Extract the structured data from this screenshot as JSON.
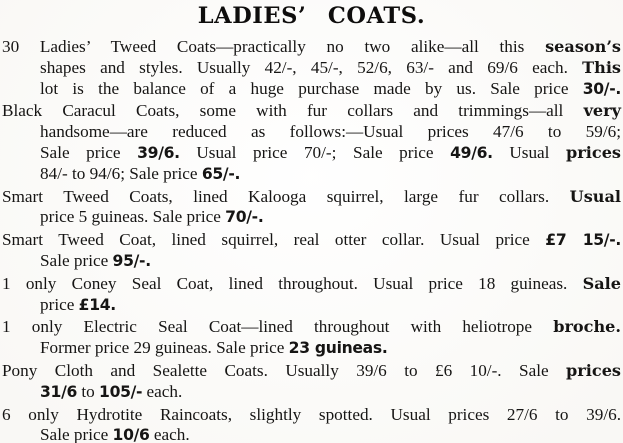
{
  "ad": {
    "title": "LADIES’ COATS.",
    "text_color": "#141312",
    "paper_color": "#fdfcf9",
    "items": [
      {
        "lines": [
          {
            "indent": false,
            "justify": true,
            "segments": [
              {
                "t": "30 Ladies’ Tweed Coats—practically no two alike—all this "
              },
              {
                "t": "season’s",
                "b": true
              }
            ]
          },
          {
            "indent": true,
            "justify": true,
            "segments": [
              {
                "t": "shapes and styles.  Usually 42/-, 45/-, 52/6, 63/- and 69/6 each.  "
              },
              {
                "t": "This",
                "b": true
              }
            ]
          },
          {
            "indent": true,
            "justify": true,
            "segments": [
              {
                "t": "lot is the balance of a huge purchase made by us.  Sale price "
              },
              {
                "t": "30/-.",
                "b": true
              }
            ]
          }
        ]
      },
      {
        "lines": [
          {
            "indent": false,
            "justify": true,
            "segments": [
              {
                "t": "Black Caracul Coats, some with fur collars and trimmings—all "
              },
              {
                "t": "very",
                "b": true
              }
            ]
          },
          {
            "indent": true,
            "justify": true,
            "segments": [
              {
                "t": "handsome—are reduced as follows:—Usual prices 47/6 to 59/6;"
              }
            ]
          },
          {
            "indent": true,
            "justify": true,
            "segments": [
              {
                "t": "Sale price "
              },
              {
                "t": "39/6.",
                "b": true
              },
              {
                "t": "  Usual price 70/-; Sale price "
              },
              {
                "t": "49/6.",
                "b": true
              },
              {
                "t": "  Usual "
              },
              {
                "t": "prices",
                "b": true
              }
            ]
          },
          {
            "indent": true,
            "justify": false,
            "segments": [
              {
                "t": "84/- to 94/6; Sale price "
              },
              {
                "t": "65/-.",
                "b": true
              }
            ]
          }
        ]
      },
      {
        "lines": [
          {
            "indent": false,
            "justify": true,
            "segments": [
              {
                "t": "Smart Tweed Coats, lined Kalooga squirrel, large fur collars.  "
              },
              {
                "t": "Usual",
                "b": true
              }
            ]
          },
          {
            "indent": true,
            "justify": false,
            "segments": [
              {
                "t": "price 5 guineas. Sale price "
              },
              {
                "t": "70/-.",
                "b": true
              }
            ]
          }
        ]
      },
      {
        "lines": [
          {
            "indent": false,
            "justify": true,
            "segments": [
              {
                "t": "Smart Tweed Coat, lined squirrel, real otter collar. Usual price "
              },
              {
                "t": "£7 15/-.",
                "b": true
              }
            ]
          },
          {
            "indent": true,
            "justify": false,
            "segments": [
              {
                "t": "Sale price "
              },
              {
                "t": "95/-.",
                "b": true
              }
            ]
          }
        ]
      },
      {
        "lines": [
          {
            "indent": false,
            "justify": true,
            "segments": [
              {
                "t": "1 only Coney Seal Coat, lined throughout. Usual price 18 guineas. "
              },
              {
                "t": "Sale",
                "b": true
              }
            ]
          },
          {
            "indent": true,
            "justify": false,
            "segments": [
              {
                "t": "price "
              },
              {
                "t": "£14.",
                "b": true
              }
            ]
          }
        ]
      },
      {
        "lines": [
          {
            "indent": false,
            "justify": true,
            "segments": [
              {
                "t": "1 only Electric Seal Coat—lined throughout with heliotrope "
              },
              {
                "t": "broche.",
                "b": true
              }
            ]
          },
          {
            "indent": true,
            "justify": false,
            "segments": [
              {
                "t": "Former price 29 guineas.  Sale price "
              },
              {
                "t": "23 guineas.",
                "b": true
              }
            ]
          }
        ]
      },
      {
        "lines": [
          {
            "indent": false,
            "justify": true,
            "segments": [
              {
                "t": "Pony Cloth and Sealette Coats.  Usually 39/6 to £6 10/-.  Sale "
              },
              {
                "t": "prices",
                "b": true
              }
            ]
          },
          {
            "indent": true,
            "justify": false,
            "segments": [
              {
                "t": "31/6",
                "b": true
              },
              {
                "t": " to "
              },
              {
                "t": "105/-",
                "b": true
              },
              {
                "t": " each."
              }
            ]
          }
        ]
      },
      {
        "lines": [
          {
            "indent": false,
            "justify": true,
            "segments": [
              {
                "t": "6 only Hydrotite Raincoats, slightly spotted.  Usual prices 27/6 to 39/6."
              }
            ]
          },
          {
            "indent": true,
            "justify": false,
            "segments": [
              {
                "t": "Sale price "
              },
              {
                "t": "10/6",
                "b": true
              },
              {
                "t": " each."
              }
            ]
          }
        ]
      }
    ]
  }
}
